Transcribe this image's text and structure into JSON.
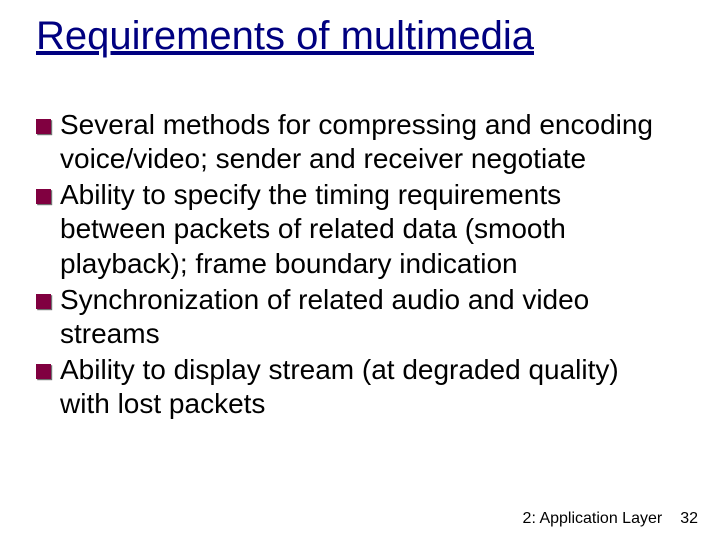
{
  "title": "Requirements of multimedia",
  "title_color": "#000080",
  "title_fontsize": 40,
  "body_fontsize": 28,
  "bullet_marker_color": "#800040",
  "bullet_marker_shadow": "#707070",
  "background_color": "#ffffff",
  "text_color": "#000000",
  "bullets": [
    "Several methods for compressing and encoding voice/video; sender and receiver negotiate",
    "Ability to specify the timing requirements between packets of related data (smooth playback); frame boundary indication",
    "Synchronization of related audio and video streams",
    "Ability to display stream (at degraded quality) with lost packets"
  ],
  "footer": {
    "chapter_label": "2: Application Layer",
    "page_number": "32",
    "fontsize": 16
  }
}
